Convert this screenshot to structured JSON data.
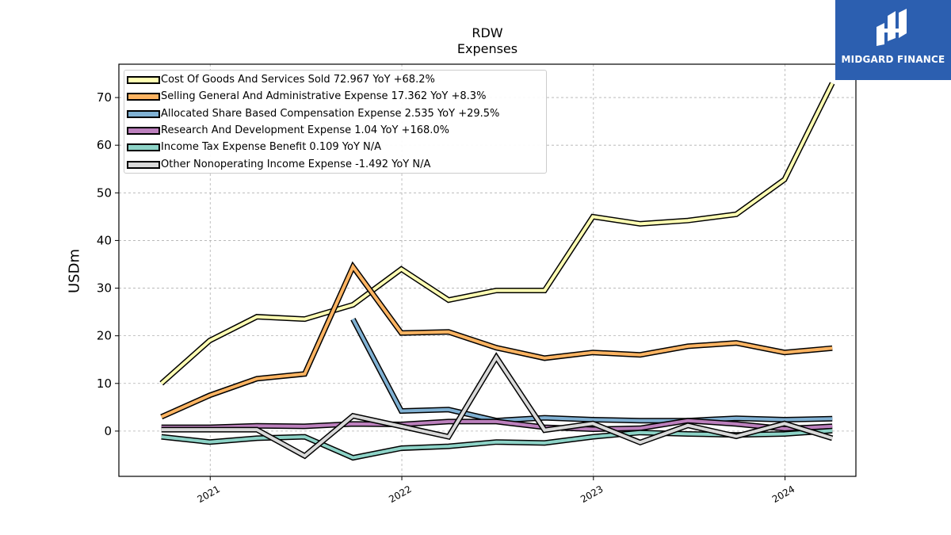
{
  "header": {
    "title": "RDW",
    "subtitle": "Expenses"
  },
  "brand": {
    "name": "MIDGARD FINANCE",
    "color": "#2c5fb0"
  },
  "chart_data": {
    "type": "line",
    "ylabel": "USDm",
    "xlabel": "",
    "ylim": [
      -9.5,
      77
    ],
    "y_ticks": [
      0,
      10,
      20,
      30,
      40,
      50,
      60,
      70
    ],
    "x_range": [
      "2020-07-11",
      "2024-05-15"
    ],
    "x_ticks": [
      {
        "label": "2021",
        "date": "2021-01-01"
      },
      {
        "label": "2022",
        "date": "2022-01-01"
      },
      {
        "label": "2023",
        "date": "2023-01-01"
      },
      {
        "label": "2024",
        "date": "2024-01-01"
      }
    ],
    "grid": true,
    "legend_position": "top-left",
    "x": [
      "2020-09-30",
      "2020-12-31",
      "2021-03-31",
      "2021-06-30",
      "2021-09-30",
      "2021-12-31",
      "2022-03-31",
      "2022-06-30",
      "2022-09-30",
      "2022-12-31",
      "2023-03-31",
      "2023-06-30",
      "2023-09-30",
      "2023-12-31",
      "2024-03-31"
    ],
    "series": [
      {
        "name": "Cost Of Goods And Services Sold",
        "legend": "Cost Of Goods And Services Sold  72.967 YoY +68.2%",
        "color": "#ffffb3",
        "values": [
          10,
          19,
          24,
          23.5,
          26.5,
          34,
          27.5,
          29.5,
          29.5,
          45,
          43.5,
          44.2,
          45.5,
          52.8,
          73
        ]
      },
      {
        "name": "Selling General And Administrative Expense",
        "legend": "Selling General And Administrative Expense  17.362 YoY +8.3%",
        "color": "#fdb462",
        "values": [
          3,
          7.5,
          11,
          12,
          34.5,
          20.6,
          20.8,
          17.5,
          15.3,
          16.5,
          16,
          17.8,
          18.5,
          16.5,
          17.4
        ]
      },
      {
        "name": "Allocated Share Based Compensation Expense",
        "legend": "Allocated Share Based Compensation Expense  2.535 YoY +29.5%",
        "color": "#80b1d3",
        "values": [
          null,
          null,
          null,
          null,
          23.5,
          4.2,
          4.5,
          2.2,
          2.8,
          2.4,
          2.2,
          2.2,
          2.7,
          2.4,
          2.6
        ]
      },
      {
        "name": "Research And Development Expense",
        "legend": "Research And Development Expense  1.04 YoY +168.0%",
        "color": "#bc80bd",
        "values": [
          0.8,
          0.8,
          1.1,
          1.0,
          1.5,
          1.4,
          2.0,
          2.0,
          0.8,
          0.4,
          0.6,
          2.2,
          1.5,
          0.5,
          1.0
        ]
      },
      {
        "name": "Income Tax Expense Benefit",
        "legend": "Income Tax Expense Benefit  0.109 YoY N/A",
        "color": "#8dd3c7",
        "values": [
          -1.2,
          -2.3,
          -1.5,
          -1.2,
          -5.6,
          -3.6,
          -3.2,
          -2.3,
          -2.5,
          -1.2,
          -0.3,
          -0.6,
          -0.8,
          -0.6,
          0.1
        ]
      },
      {
        "name": "Other Nonoperating Income Expense",
        "legend": "Other Nonoperating Income Expense  -1.492 YoY N/A",
        "color": "#d9d9d9",
        "values": [
          0.3,
          0.3,
          0.3,
          -5.2,
          3.2,
          1.0,
          -1.2,
          15.5,
          0.2,
          1.6,
          -2.4,
          1.2,
          -1.1,
          1.6,
          -1.5
        ]
      }
    ]
  }
}
